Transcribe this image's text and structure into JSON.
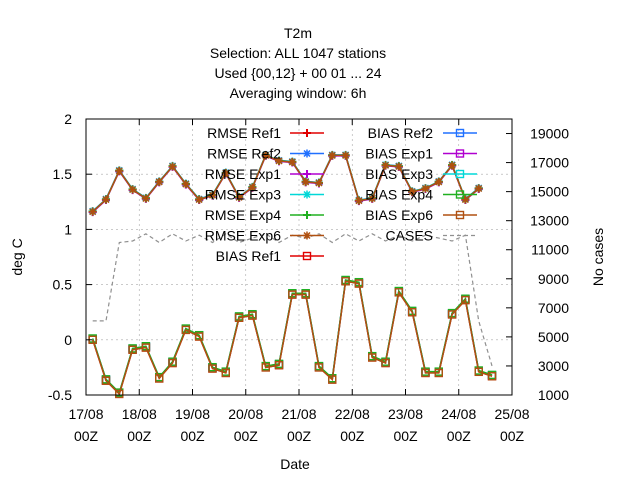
{
  "chart_data": {
    "type": "line",
    "title_lines": [
      "T2m",
      "Selection: ALL    1047 stations",
      "Used {00,12} + 00 01 ... 24",
      "Averaging window:  6h"
    ],
    "xlabel": "Date",
    "ylabel": "deg C",
    "y2label": "No cases",
    "ylim": [
      -0.5,
      2
    ],
    "y2lim": [
      1000,
      20000
    ],
    "yticks": [
      "-0.5",
      "0",
      "0.5",
      "1",
      "1.5",
      "2"
    ],
    "y2ticks": [
      "1000",
      "3000",
      "5000",
      "7000",
      "9000",
      "11000",
      "13000",
      "15000",
      "17000",
      "19000"
    ],
    "xticks": [
      {
        "date": "17/08",
        "hour": "00Z"
      },
      {
        "date": "18/08",
        "hour": "00Z"
      },
      {
        "date": "19/08",
        "hour": "00Z"
      },
      {
        "date": "20/08",
        "hour": "00Z"
      },
      {
        "date": "21/08",
        "hour": "00Z"
      },
      {
        "date": "22/08",
        "hour": "00Z"
      },
      {
        "date": "23/08",
        "hour": "00Z"
      },
      {
        "date": "24/08",
        "hour": "00Z"
      },
      {
        "date": "25/08",
        "hour": "00Z"
      }
    ],
    "x_hours": [
      3,
      9,
      15,
      21,
      27,
      33,
      39,
      45,
      51,
      57,
      63,
      69,
      75,
      81,
      87,
      93,
      99,
      105,
      111,
      117,
      123,
      129,
      135,
      141,
      147,
      153,
      159,
      165,
      171,
      177,
      183,
      189,
      195,
      201
    ],
    "rmse_values": [
      1.16,
      1.27,
      1.53,
      1.36,
      1.28,
      1.43,
      1.57,
      1.41,
      1.27,
      1.31,
      1.51,
      1.29,
      1.38,
      1.67,
      1.62,
      1.61,
      1.43,
      1.42,
      1.67,
      1.67,
      1.26,
      1.28,
      1.58,
      1.57,
      1.34,
      1.37,
      1.43,
      1.58,
      1.27,
      1.37
    ],
    "rmse_x_index": [
      0,
      1,
      2,
      3,
      4,
      5,
      6,
      7,
      8,
      9,
      10,
      11,
      12,
      13,
      14,
      15,
      16,
      17,
      18,
      19,
      20,
      21,
      22,
      23,
      24,
      25,
      26,
      27,
      28,
      29
    ],
    "bias_values": [
      0.0,
      -0.37,
      -0.49,
      -0.09,
      -0.07,
      -0.35,
      -0.21,
      0.09,
      0.03,
      -0.26,
      -0.3,
      0.2,
      0.22,
      -0.25,
      -0.23,
      0.41,
      0.41,
      -0.25,
      -0.36,
      0.53,
      0.51,
      -0.16,
      -0.21,
      0.43,
      0.25,
      -0.3,
      -0.3,
      0.23,
      0.36,
      -0.29,
      -0.33
    ],
    "bias_x_index": [
      0,
      1,
      2,
      3,
      4,
      5,
      6,
      7,
      8,
      9,
      10,
      11,
      12,
      13,
      14,
      15,
      16,
      17,
      18,
      19,
      20,
      21,
      22,
      23,
      24,
      25,
      26,
      27,
      28,
      29,
      30
    ],
    "cases_values": [
      6100,
      6100,
      11500,
      11600,
      12100,
      11500,
      12100,
      11600,
      12000,
      11500,
      12100,
      11500,
      11800,
      12100,
      11500,
      12000,
      11800,
      12100,
      11500,
      12100,
      11600,
      12100,
      11600,
      12000,
      11600,
      12000,
      11800,
      11600,
      12000,
      6100,
      3000
    ],
    "series": [
      {
        "name": "RMSE Ref1",
        "color": "#e00000",
        "marker": "plus",
        "kind": "rmse",
        "offset": 0.0
      },
      {
        "name": "RMSE Ref2",
        "color": "#2070ff",
        "marker": "star",
        "kind": "rmse",
        "offset": 0.005
      },
      {
        "name": "RMSE Exp1",
        "color": "#b000d0",
        "marker": "plus",
        "kind": "rmse",
        "offset": -0.004
      },
      {
        "name": "RMSE Exp3",
        "color": "#00d8d8",
        "marker": "star",
        "kind": "rmse",
        "offset": 0.003
      },
      {
        "name": "RMSE Exp4",
        "color": "#20b020",
        "marker": "plus",
        "kind": "rmse",
        "offset": 0.002
      },
      {
        "name": "RMSE Exp6",
        "color": "#b05010",
        "marker": "star",
        "kind": "rmse",
        "offset": 0.0
      },
      {
        "name": "BIAS Ref1",
        "color": "#e00000",
        "marker": "square",
        "kind": "bias",
        "offset": 0.0
      },
      {
        "name": "BIAS Ref2",
        "color": "#2070ff",
        "marker": "square",
        "kind": "bias",
        "offset": 0.01
      },
      {
        "name": "BIAS Exp1",
        "color": "#b000d0",
        "marker": "square",
        "kind": "bias",
        "offset": 0.005
      },
      {
        "name": "BIAS Exp3",
        "color": "#00d8d8",
        "marker": "square",
        "kind": "bias",
        "offset": 0.008
      },
      {
        "name": "BIAS Exp4",
        "color": "#20b020",
        "marker": "square",
        "kind": "bias",
        "offset": 0.012
      },
      {
        "name": "BIAS Exp6",
        "color": "#b05010",
        "marker": "square",
        "kind": "bias",
        "offset": 0.0
      },
      {
        "name": "CASES",
        "color": "#909090",
        "marker": "none",
        "kind": "cases",
        "offset": 0.0
      }
    ],
    "grid": true,
    "legend_placement": "top, inside plot, two columns"
  }
}
